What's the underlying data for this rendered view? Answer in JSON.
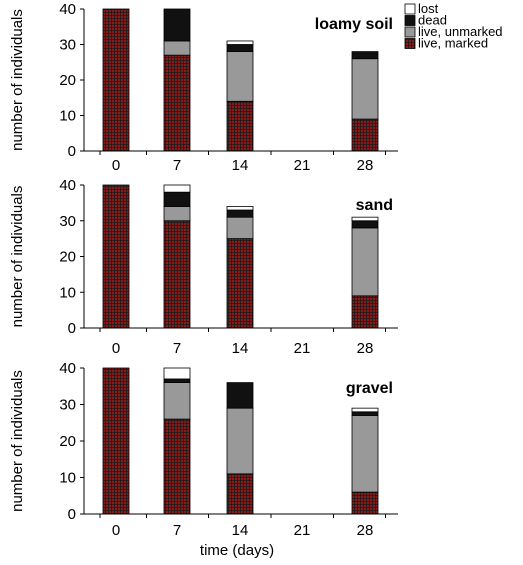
{
  "colors": {
    "lost": "#ffffff",
    "dead": "#111111",
    "live_unmarked": "#999999",
    "live_marked": "#8b1a1a",
    "live_marked_grid": "#1a1a1a"
  },
  "chart_data": {
    "type": "bar",
    "stacked": true,
    "xlabel": "time (days)",
    "ylabel": "number of individuals",
    "categories": [
      "0",
      "7",
      "14",
      "21",
      "28"
    ],
    "ylim": [
      0,
      40
    ],
    "yticks": [
      0,
      10,
      20,
      30,
      40
    ],
    "legend": {
      "position": "top-right",
      "entries": [
        "lost",
        "dead",
        "live, unmarked",
        "live, marked"
      ]
    },
    "panels": [
      {
        "title": "loamy soil",
        "series": [
          {
            "name": "live, marked",
            "values": [
              40,
              27,
              14,
              0,
              9
            ]
          },
          {
            "name": "live, unmarked",
            "values": [
              0,
              4,
              14,
              0,
              17
            ]
          },
          {
            "name": "dead",
            "values": [
              0,
              9,
              2,
              0,
              2
            ]
          },
          {
            "name": "lost",
            "values": [
              0,
              0,
              1,
              0,
              0
            ]
          }
        ]
      },
      {
        "title": "sand",
        "series": [
          {
            "name": "live, marked",
            "values": [
              40,
              30,
              25,
              0,
              9
            ]
          },
          {
            "name": "live, unmarked",
            "values": [
              0,
              4,
              6,
              0,
              19
            ]
          },
          {
            "name": "dead",
            "values": [
              0,
              4,
              2,
              0,
              2
            ]
          },
          {
            "name": "lost",
            "values": [
              0,
              2,
              1,
              0,
              1
            ]
          }
        ]
      },
      {
        "title": "gravel",
        "series": [
          {
            "name": "live, marked",
            "values": [
              40,
              26,
              11,
              0,
              6
            ]
          },
          {
            "name": "live, unmarked",
            "values": [
              0,
              10,
              18,
              0,
              21
            ]
          },
          {
            "name": "dead",
            "values": [
              0,
              1,
              7,
              0,
              1
            ]
          },
          {
            "name": "lost",
            "values": [
              0,
              3,
              0,
              0,
              1
            ]
          }
        ]
      }
    ]
  }
}
